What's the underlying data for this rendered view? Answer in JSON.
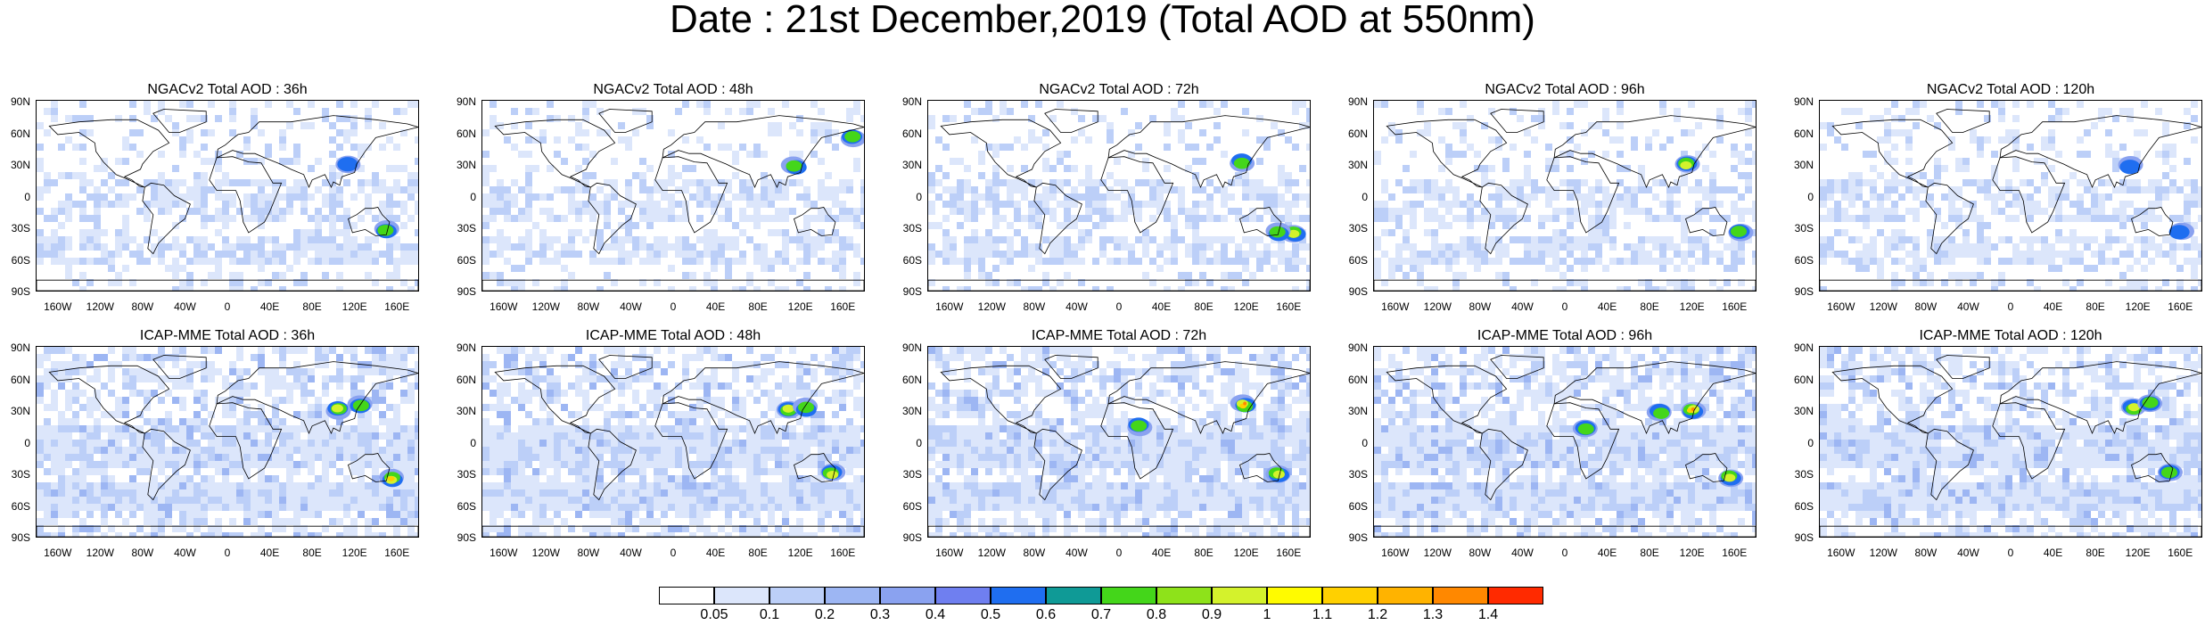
{
  "title": "Date : 21st December,2019 (Total AOD at 550nm)",
  "lat_ticks": [
    "90N",
    "60N",
    "30N",
    "0",
    "30S",
    "60S",
    "90S"
  ],
  "lon_ticks": [
    "160W",
    "120W",
    "80W",
    "40W",
    "0",
    "40E",
    "80E",
    "120E",
    "160E"
  ],
  "panels": [
    {
      "title": "NGACv2 Total AOD : 36h",
      "model": "NGACv2",
      "lead": "36h"
    },
    {
      "title": "NGACv2 Total AOD : 48h",
      "model": "NGACv2",
      "lead": "48h"
    },
    {
      "title": "NGACv2 Total AOD : 72h",
      "model": "NGACv2",
      "lead": "72h"
    },
    {
      "title": "NGACv2 Total AOD : 96h",
      "model": "NGACv2",
      "lead": "96h"
    },
    {
      "title": "NGACv2 Total AOD : 120h",
      "model": "NGACv2",
      "lead": "120h"
    },
    {
      "title": "ICAP-MME Total AOD : 36h",
      "model": "ICAP-MME",
      "lead": "36h"
    },
    {
      "title": "ICAP-MME Total AOD : 48h",
      "model": "ICAP-MME",
      "lead": "48h"
    },
    {
      "title": "ICAP-MME Total AOD : 72h",
      "model": "ICAP-MME",
      "lead": "72h"
    },
    {
      "title": "ICAP-MME Total AOD : 96h",
      "model": "ICAP-MME",
      "lead": "96h"
    },
    {
      "title": "ICAP-MME Total AOD : 120h",
      "model": "ICAP-MME",
      "lead": "120h"
    }
  ],
  "colorbar": {
    "labels": [
      "0.05",
      "0.1",
      "0.2",
      "0.3",
      "0.4",
      "0.5",
      "0.6",
      "0.7",
      "0.8",
      "0.9",
      "1",
      "1.1",
      "1.2",
      "1.3",
      "1.4"
    ],
    "colors": [
      "#ffffff",
      "#dce6fb",
      "#bccff8",
      "#9db6f3",
      "#8aa2f0",
      "#6f7ff0",
      "#1f6ef0",
      "#0f9a96",
      "#44d61a",
      "#8ee21a",
      "#d4f22c",
      "#fffb00",
      "#ffd000",
      "#ffb300",
      "#ff8800",
      "#ff2a00"
    ]
  }
}
